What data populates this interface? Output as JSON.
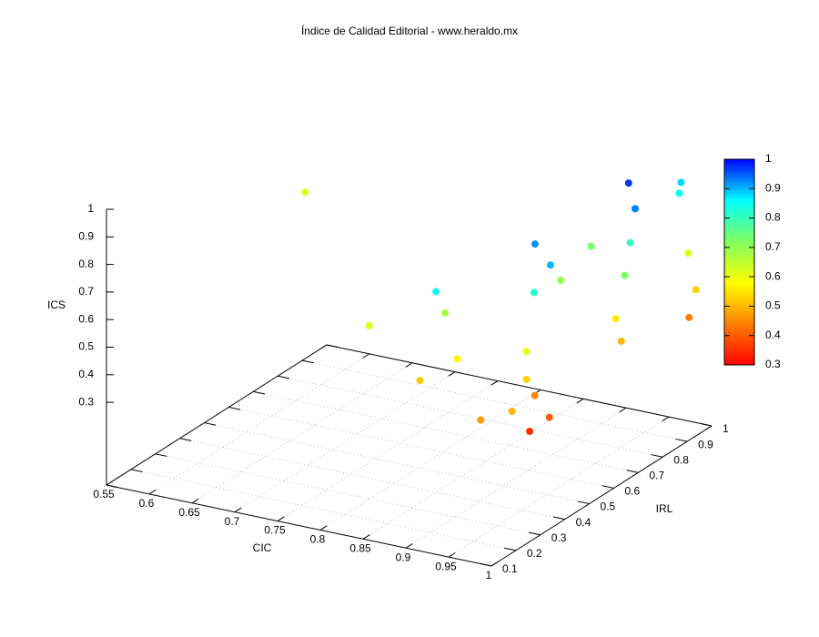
{
  "chart_data": {
    "type": "scatter3d",
    "title": "Índice de Calidad Editorial - www.heraldo.mx",
    "xlabel": "CIC",
    "ylabel": "IRL",
    "zlabel": "ICS",
    "x": [
      0.56,
      0.961,
      0.972,
      0.974,
      0.987,
      0.944,
      0.924,
      0.98,
      0.977,
      0.979,
      0.933,
      0.99,
      1.0,
      0.896,
      0.972,
      0.869,
      0.797,
      0.981,
      0.998,
      0.994,
      0.963,
      0.901,
      0.879,
      0.975,
      0.974,
      0.995,
      0.998,
      0.968,
      0.981
    ],
    "y": [
      0.877,
      0.797,
      0.973,
      0.959,
      0.733,
      0.474,
      0.773,
      0.737,
      0.985,
      0.415,
      0.618,
      0.68,
      0.936,
      0.237,
      0.372,
      0.369,
      0.31,
      0.675,
      0.915,
      0.652,
      0.372,
      0.307,
      0.231,
      0.331,
      0.368,
      0.202,
      0.344,
      0.168,
      0.323
    ],
    "z": [
      0.63,
      0.97,
      0.88,
      0.85,
      0.93,
      0.92,
      0.73,
      0.8,
      0.62,
      0.9,
      0.7,
      0.72,
      0.53,
      0.85,
      0.82,
      0.68,
      0.62,
      0.56,
      0.44,
      0.5,
      0.6,
      0.57,
      0.52,
      0.53,
      0.45,
      0.5,
      0.4,
      0.47,
      0.35
    ],
    "xlim": [
      0.55,
      1
    ],
    "ylim": [
      0.1,
      1
    ],
    "zlim": [
      0,
      1
    ],
    "xticks": [
      0.55,
      0.6,
      0.65,
      0.7,
      0.75,
      0.8,
      0.85,
      0.9,
      0.95,
      1
    ],
    "yticks": [
      0.1,
      0.2,
      0.3,
      0.4,
      0.5,
      0.6,
      0.7,
      0.8,
      0.9,
      1
    ],
    "zticks": [
      0.3,
      0.4,
      0.5,
      0.6,
      0.7,
      0.8,
      0.9,
      1
    ],
    "grid": true,
    "colorbar": {
      "lim": [
        0.3,
        1
      ],
      "ticks": [
        0.3,
        0.4,
        0.5,
        0.6,
        0.7,
        0.8,
        0.9,
        1
      ],
      "palette": [
        "#ff0000",
        "#ff8000",
        "#ffff00",
        "#80ff60",
        "#00ffff",
        "#0000ff"
      ]
    }
  }
}
